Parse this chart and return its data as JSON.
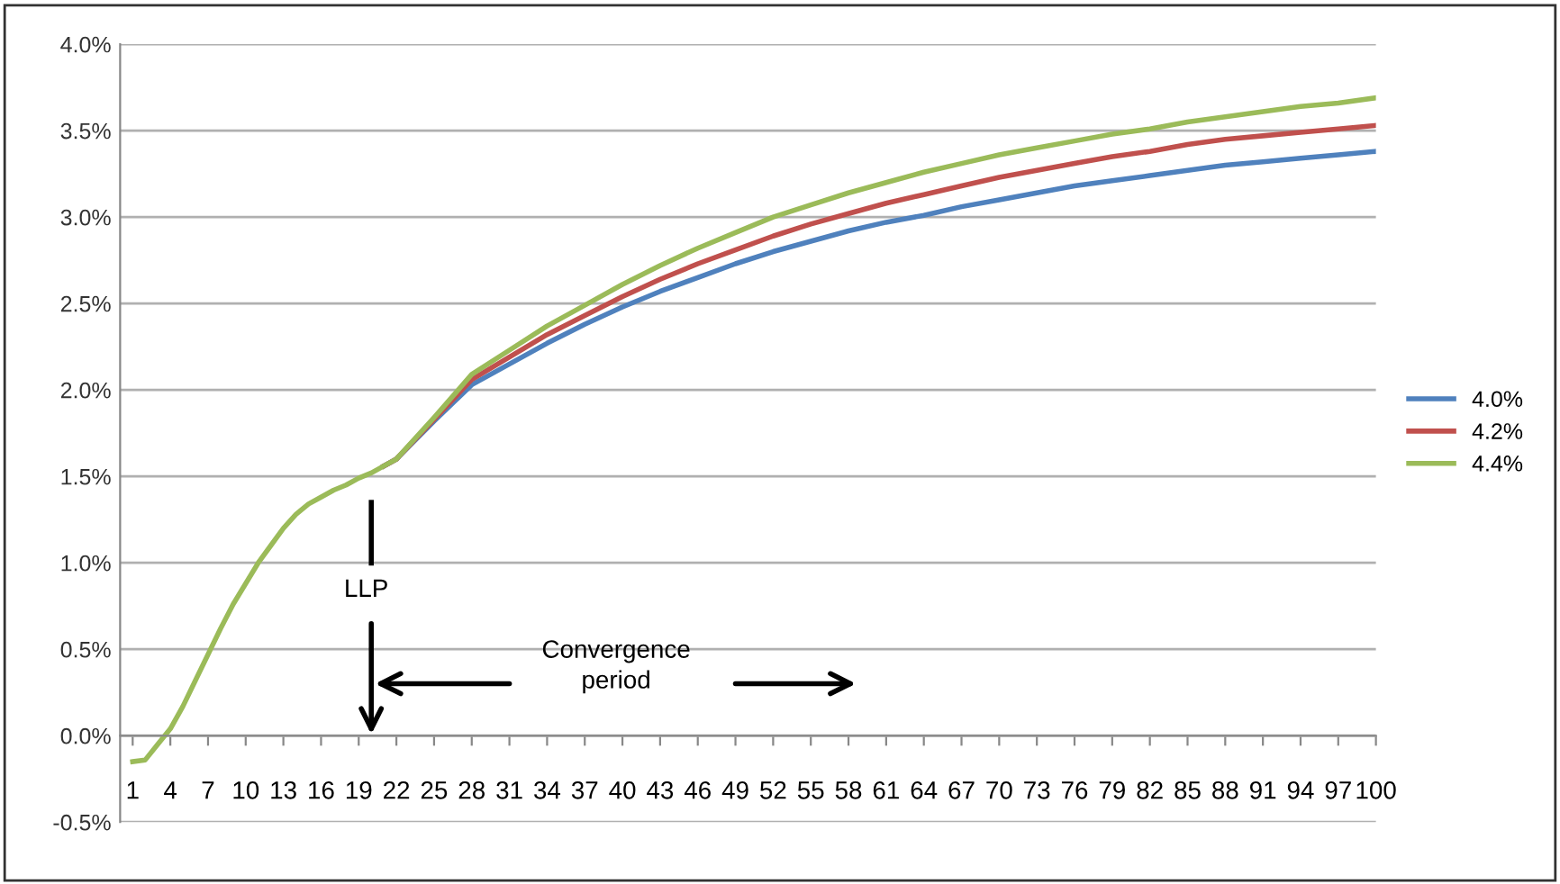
{
  "chart_data": {
    "type": "line",
    "xlim": [
      0,
      100
    ],
    "xticks": [
      1,
      4,
      7,
      10,
      13,
      16,
      19,
      22,
      25,
      28,
      31,
      34,
      37,
      40,
      43,
      46,
      49,
      52,
      55,
      58,
      61,
      64,
      67,
      70,
      73,
      76,
      79,
      82,
      85,
      88,
      91,
      94,
      97,
      100
    ],
    "ylim": [
      -0.5,
      4.0
    ],
    "yticks": [
      {
        "value": -0.5,
        "label": "-0.5%"
      },
      {
        "value": 0.0,
        "label": "0.0%"
      },
      {
        "value": 0.5,
        "label": "0.5%"
      },
      {
        "value": 1.0,
        "label": "1.0%"
      },
      {
        "value": 1.5,
        "label": "1.5%"
      },
      {
        "value": 2.0,
        "label": "2.0%"
      },
      {
        "value": 2.5,
        "label": "2.5%"
      },
      {
        "value": 3.0,
        "label": "3.0%"
      },
      {
        "value": 3.5,
        "label": "3.5%"
      },
      {
        "value": 4.0,
        "label": "4.0%"
      }
    ],
    "grid": "y",
    "legend": "right",
    "marker": "none",
    "line_style": "solid",
    "x": [
      1,
      2,
      3,
      4,
      5,
      6,
      7,
      8,
      9,
      10,
      11,
      12,
      13,
      14,
      15,
      16,
      17,
      18,
      19,
      20,
      21,
      22,
      25,
      28,
      31,
      34,
      37,
      40,
      43,
      46,
      49,
      52,
      55,
      58,
      61,
      64,
      67,
      70,
      73,
      76,
      79,
      82,
      85,
      88,
      91,
      94,
      97,
      100
    ],
    "series": [
      {
        "name": "4.0%",
        "color": "#4f81bd",
        "values": [
          null,
          null,
          null,
          null,
          null,
          null,
          null,
          null,
          null,
          null,
          null,
          null,
          null,
          null,
          null,
          null,
          null,
          null,
          null,
          null,
          1.56,
          1.6,
          1.82,
          2.03,
          2.15,
          2.27,
          2.38,
          2.48,
          2.57,
          2.65,
          2.73,
          2.8,
          2.86,
          2.92,
          2.97,
          3.01,
          3.06,
          3.1,
          3.14,
          3.18,
          3.21,
          3.24,
          3.27,
          3.3,
          3.32,
          3.34,
          3.36,
          3.38
        ]
      },
      {
        "name": "4.2%",
        "color": "#c0504d",
        "values": [
          null,
          null,
          null,
          null,
          null,
          null,
          null,
          null,
          null,
          null,
          null,
          null,
          null,
          null,
          null,
          null,
          null,
          null,
          null,
          null,
          1.56,
          1.6,
          1.83,
          2.06,
          2.19,
          2.32,
          2.43,
          2.54,
          2.64,
          2.73,
          2.81,
          2.89,
          2.96,
          3.02,
          3.08,
          3.13,
          3.18,
          3.23,
          3.27,
          3.31,
          3.35,
          3.38,
          3.42,
          3.45,
          3.47,
          3.49,
          3.51,
          3.53
        ]
      },
      {
        "name": "4.4%",
        "color": "#9bbb59",
        "values": [
          -0.15,
          -0.14,
          -0.05,
          0.04,
          0.17,
          0.32,
          0.47,
          0.62,
          0.76,
          0.88,
          1.0,
          1.1,
          1.2,
          1.28,
          1.34,
          1.38,
          1.42,
          1.45,
          1.49,
          1.52,
          1.56,
          1.6,
          1.84,
          2.09,
          2.23,
          2.37,
          2.49,
          2.61,
          2.72,
          2.82,
          2.91,
          3.0,
          3.07,
          3.14,
          3.2,
          3.26,
          3.31,
          3.36,
          3.4,
          3.44,
          3.48,
          3.51,
          3.55,
          3.58,
          3.61,
          3.64,
          3.66,
          3.69
        ]
      }
    ],
    "annotations": [
      "LLP",
      "Convergence\nperiod"
    ]
  }
}
